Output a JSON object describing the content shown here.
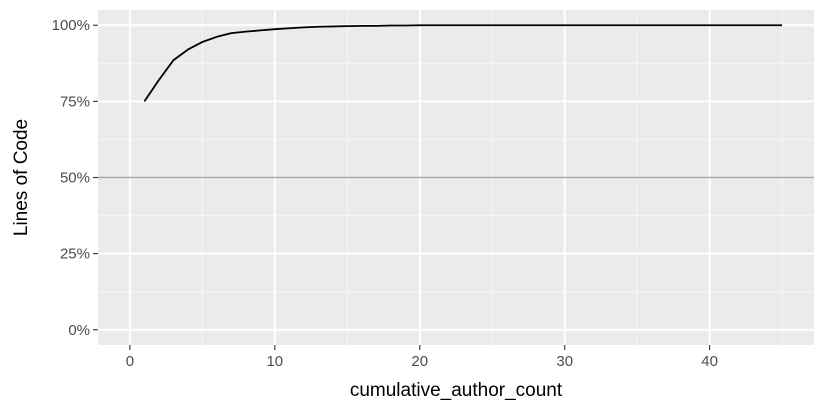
{
  "chart_data": {
    "type": "line",
    "title": "",
    "xlabel": "cumulative_author_count",
    "ylabel": "Lines of Code",
    "xlim": [
      -2.2,
      47.2
    ],
    "ylim": [
      -0.05,
      1.05
    ],
    "x_ticks": [
      0,
      10,
      20,
      30,
      40
    ],
    "x_tick_labels": [
      "0",
      "10",
      "20",
      "30",
      "40"
    ],
    "x_minor_ticks": [
      5,
      15,
      25,
      35,
      45
    ],
    "y_ticks": [
      0,
      0.25,
      0.5,
      0.75,
      1.0
    ],
    "y_tick_labels": [
      "0%",
      "25%",
      "50%",
      "75%",
      "100%"
    ],
    "y_minor_ticks": [
      0.125,
      0.375,
      0.625,
      0.875
    ],
    "grid": true,
    "reference_line": {
      "y": 0.5,
      "color": "#a6a6a6"
    },
    "series": [
      {
        "color": "#000000",
        "x": [
          1,
          2,
          3,
          4,
          5,
          6,
          7,
          8,
          9,
          10,
          11,
          12,
          13,
          14,
          15,
          16,
          17,
          18,
          19,
          20,
          25,
          30,
          35,
          40,
          45
        ],
        "y": [
          0.75,
          0.82,
          0.885,
          0.92,
          0.945,
          0.962,
          0.974,
          0.979,
          0.983,
          0.987,
          0.99,
          0.993,
          0.995,
          0.996,
          0.997,
          0.998,
          0.998,
          0.999,
          0.999,
          1.0,
          1.0,
          1.0,
          1.0,
          1.0,
          1.0
        ]
      }
    ],
    "colors": {
      "panel_background": "#ebebeb",
      "grid_major": "#ffffff",
      "grid_minor": "#f5f5f5",
      "tick_mark": "#333333"
    }
  }
}
